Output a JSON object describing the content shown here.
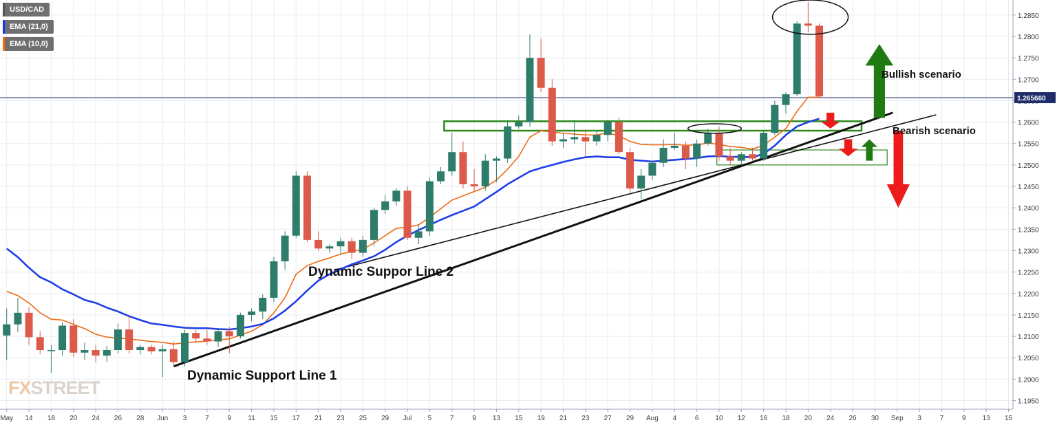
{
  "legend": [
    {
      "label": "USD/CAD",
      "color": "#555555"
    },
    {
      "label": "EMA (21,0)",
      "color": "#1434f0"
    },
    {
      "label": "EMA (10,0)",
      "color": "#ff6a00"
    }
  ],
  "watermark": {
    "prefix": "FX",
    "suffix": "STREET"
  },
  "colors": {
    "bull": "#2e7d6b",
    "bear": "#dc5a4a",
    "ema21": "#1e3ee8",
    "ema10": "#ee6a14",
    "grid": "#e8ecf2",
    "axis_text": "#3a3a3a",
    "price_line": "#1f2d6b",
    "zone": "#2f8a1c",
    "arrow_green": "#1f7a12",
    "arrow_red": "#ee1b1b"
  },
  "annotations": {
    "support1": "Dynamic Support Line 1",
    "support2": "Dynamic Suppor Line 2",
    "bullish": "Bullish scenario",
    "bearish": "Bearish scenario"
  },
  "chart_data": {
    "type": "candlestick",
    "title": "USD/CAD",
    "ylim": [
      1.193,
      1.2885
    ],
    "y_ticks": [
      1.195,
      1.2,
      1.205,
      1.21,
      1.215,
      1.22,
      1.225,
      1.23,
      1.235,
      1.24,
      1.245,
      1.25,
      1.255,
      1.26,
      1.265,
      1.27,
      1.275,
      1.28,
      1.285
    ],
    "y_tick_labels": [
      "1.1950",
      "1.2000",
      "1.2050",
      "1.2100",
      "1.2150",
      "1.2200",
      "1.2250",
      "1.2300",
      "1.2350",
      "1.2400",
      "1.2450",
      "1.2500",
      "1.2550",
      "1.2600",
      "1.2650",
      "1.2700",
      "1.2750",
      "1.2800",
      "1.2850"
    ],
    "x_index_range": [
      -0.6,
      90.4
    ],
    "x_ticks": [
      {
        "i": 0,
        "label": "May"
      },
      {
        "i": 2,
        "label": "14"
      },
      {
        "i": 4,
        "label": "18"
      },
      {
        "i": 6,
        "label": "20"
      },
      {
        "i": 8,
        "label": "24"
      },
      {
        "i": 10,
        "label": "26"
      },
      {
        "i": 12,
        "label": "28"
      },
      {
        "i": 14,
        "label": "Jun"
      },
      {
        "i": 16,
        "label": "3"
      },
      {
        "i": 18,
        "label": "7"
      },
      {
        "i": 20,
        "label": "9"
      },
      {
        "i": 22,
        "label": "11"
      },
      {
        "i": 24,
        "label": "15"
      },
      {
        "i": 26,
        "label": "17"
      },
      {
        "i": 28,
        "label": "21"
      },
      {
        "i": 30,
        "label": "23"
      },
      {
        "i": 32,
        "label": "25"
      },
      {
        "i": 34,
        "label": "29"
      },
      {
        "i": 36,
        "label": "Jul"
      },
      {
        "i": 38,
        "label": "5"
      },
      {
        "i": 40,
        "label": "7"
      },
      {
        "i": 42,
        "label": "9"
      },
      {
        "i": 44,
        "label": "13"
      },
      {
        "i": 46,
        "label": "15"
      },
      {
        "i": 48,
        "label": "19"
      },
      {
        "i": 50,
        "label": "21"
      },
      {
        "i": 52,
        "label": "23"
      },
      {
        "i": 54,
        "label": "27"
      },
      {
        "i": 56,
        "label": "29"
      },
      {
        "i": 58,
        "label": "Aug"
      },
      {
        "i": 60,
        "label": "4"
      },
      {
        "i": 62,
        "label": "6"
      },
      {
        "i": 64,
        "label": "10"
      },
      {
        "i": 66,
        "label": "12"
      },
      {
        "i": 68,
        "label": "16"
      },
      {
        "i": 70,
        "label": "18"
      },
      {
        "i": 72,
        "label": "20"
      },
      {
        "i": 74,
        "label": "24"
      },
      {
        "i": 76,
        "label": "26"
      },
      {
        "i": 78,
        "label": "30"
      },
      {
        "i": 80,
        "label": "Sep"
      },
      {
        "i": 82,
        "label": "3"
      },
      {
        "i": 84,
        "label": "7"
      },
      {
        "i": 86,
        "label": "9"
      },
      {
        "i": 88,
        "label": "13"
      },
      {
        "i": 90,
        "label": "15"
      }
    ],
    "current_price": {
      "value": 1.2657,
      "label": "1.265660"
    },
    "candles": [
      [
        1.2102,
        1.2165,
        1.2045,
        1.2128
      ],
      [
        1.2128,
        1.219,
        1.211,
        1.2155
      ],
      [
        1.2155,
        1.2168,
        1.208,
        1.2098
      ],
      [
        1.2098,
        1.2112,
        1.2058,
        1.2068
      ],
      [
        1.2068,
        1.208,
        1.2015,
        1.2068
      ],
      [
        1.2068,
        1.2134,
        1.2055,
        1.2125
      ],
      [
        1.2125,
        1.214,
        1.2052,
        1.2062
      ],
      [
        1.2062,
        1.2085,
        1.2045,
        1.2068
      ],
      [
        1.2068,
        1.208,
        1.204,
        1.2055
      ],
      [
        1.2055,
        1.2078,
        1.204,
        1.2068
      ],
      [
        1.2068,
        1.213,
        1.206,
        1.2116
      ],
      [
        1.2116,
        1.2145,
        1.206,
        1.2068
      ],
      [
        1.2068,
        1.208,
        1.2058,
        1.2075
      ],
      [
        1.2075,
        1.208,
        1.2058,
        1.2065
      ],
      [
        1.2065,
        1.208,
        1.2005,
        1.207
      ],
      [
        1.207,
        1.2088,
        1.203,
        1.204
      ],
      [
        1.204,
        1.2115,
        1.203,
        1.2108
      ],
      [
        1.2108,
        1.2115,
        1.2085,
        1.2095
      ],
      [
        1.2095,
        1.2115,
        1.208,
        1.2088
      ],
      [
        1.2088,
        1.212,
        1.2075,
        1.2112
      ],
      [
        1.2112,
        1.2122,
        1.206,
        1.21
      ],
      [
        1.21,
        1.2155,
        1.2095,
        1.215
      ],
      [
        1.215,
        1.2165,
        1.2135,
        1.2158
      ],
      [
        1.2158,
        1.2198,
        1.214,
        1.219
      ],
      [
        1.219,
        1.2285,
        1.218,
        1.2275
      ],
      [
        1.2275,
        1.2345,
        1.2255,
        1.2335
      ],
      [
        1.2335,
        1.2485,
        1.233,
        1.2475
      ],
      [
        1.2475,
        1.2485,
        1.232,
        1.2325
      ],
      [
        1.2325,
        1.2345,
        1.23,
        1.2305
      ],
      [
        1.2305,
        1.2315,
        1.2295,
        1.231
      ],
      [
        1.231,
        1.233,
        1.229,
        1.2322
      ],
      [
        1.2322,
        1.233,
        1.228,
        1.2295
      ],
      [
        1.2295,
        1.2335,
        1.2285,
        1.2325
      ],
      [
        1.2325,
        1.24,
        1.231,
        1.2395
      ],
      [
        1.2395,
        1.243,
        1.2385,
        1.2415
      ],
      [
        1.2415,
        1.2445,
        1.2405,
        1.244
      ],
      [
        1.244,
        1.245,
        1.2325,
        1.233
      ],
      [
        1.233,
        1.236,
        1.2315,
        1.2345
      ],
      [
        1.2345,
        1.247,
        1.2335,
        1.2462
      ],
      [
        1.2462,
        1.2495,
        1.2455,
        1.2485
      ],
      [
        1.2485,
        1.2575,
        1.2475,
        1.253
      ],
      [
        1.253,
        1.2555,
        1.2445,
        1.2455
      ],
      [
        1.2455,
        1.249,
        1.244,
        1.245
      ],
      [
        1.245,
        1.2525,
        1.244,
        1.251
      ],
      [
        1.251,
        1.252,
        1.246,
        1.2515
      ],
      [
        1.2515,
        1.2605,
        1.2505,
        1.259
      ],
      [
        1.259,
        1.2615,
        1.2585,
        1.26
      ],
      [
        1.26,
        1.2805,
        1.259,
        1.275
      ],
      [
        1.275,
        1.2795,
        1.267,
        1.268
      ],
      [
        1.268,
        1.27,
        1.2545,
        1.2555
      ],
      [
        1.2555,
        1.2575,
        1.254,
        1.256
      ],
      [
        1.256,
        1.2605,
        1.255,
        1.2565
      ],
      [
        1.2565,
        1.258,
        1.252,
        1.2555
      ],
      [
        1.2555,
        1.258,
        1.2545,
        1.257
      ],
      [
        1.257,
        1.2605,
        1.2555,
        1.26
      ],
      [
        1.26,
        1.261,
        1.2525,
        1.253
      ],
      [
        1.253,
        1.254,
        1.2435,
        1.2445
      ],
      [
        1.2445,
        1.249,
        1.242,
        1.2475
      ],
      [
        1.2475,
        1.251,
        1.2465,
        1.2505
      ],
      [
        1.2505,
        1.256,
        1.2495,
        1.254
      ],
      [
        1.254,
        1.2575,
        1.2535,
        1.2545
      ],
      [
        1.2545,
        1.2555,
        1.249,
        1.2515
      ],
      [
        1.2515,
        1.256,
        1.2495,
        1.255
      ],
      [
        1.255,
        1.2585,
        1.2545,
        1.2575
      ],
      [
        1.2575,
        1.259,
        1.251,
        1.252
      ],
      [
        1.252,
        1.254,
        1.25,
        1.251
      ],
      [
        1.251,
        1.253,
        1.25,
        1.2525
      ],
      [
        1.2525,
        1.254,
        1.251,
        1.2515
      ],
      [
        1.2515,
        1.258,
        1.251,
        1.2575
      ],
      [
        1.2575,
        1.265,
        1.257,
        1.264
      ],
      [
        1.264,
        1.267,
        1.262,
        1.2665
      ],
      [
        1.2665,
        1.2835,
        1.266,
        1.283
      ],
      [
        1.283,
        1.288,
        1.281,
        1.2825
      ],
      [
        1.2825,
        1.283,
        1.2655,
        1.266
      ]
    ],
    "series": [
      {
        "name": "EMA (21,0)",
        "values": [
          1.2305,
          1.2285,
          1.226,
          1.2238,
          1.2226,
          1.221,
          1.2198,
          1.2185,
          1.2178,
          1.2167,
          1.2158,
          1.2147,
          1.2138,
          1.213,
          1.2127,
          1.2123,
          1.212,
          1.2119,
          1.2119,
          1.2117,
          1.2116,
          1.2119,
          1.2123,
          1.2129,
          1.2142,
          1.216,
          1.2182,
          1.2207,
          1.223,
          1.2245,
          1.2257,
          1.2268,
          1.2277,
          1.2287,
          1.2302,
          1.232,
          1.2335,
          1.2348,
          1.236,
          1.2372,
          1.2383,
          1.2393,
          1.2403,
          1.242,
          1.2437,
          1.2455,
          1.247,
          1.2485,
          1.2493,
          1.25,
          1.2507,
          1.2513,
          1.2518,
          1.252,
          1.2518,
          1.2518,
          1.2512,
          1.251,
          1.2508,
          1.251,
          1.2512,
          1.2514,
          1.2516,
          1.252,
          1.2521,
          1.2519,
          1.2519,
          1.2518,
          1.2526,
          1.2545,
          1.257,
          1.259,
          1.26,
          1.2608
        ]
      },
      {
        "name": "EMA (10,0)",
        "values": [
          1.2205,
          1.2195,
          1.2178,
          1.2155,
          1.214,
          1.2138,
          1.2128,
          1.2118,
          1.2105,
          1.2098,
          1.2096,
          1.2094,
          1.2091,
          1.2088,
          1.2086,
          1.2082,
          1.2085,
          1.2087,
          1.2089,
          1.2092,
          1.2094,
          1.2103,
          1.2112,
          1.2127,
          1.2155,
          1.219,
          1.2245,
          1.2265,
          1.2275,
          1.2283,
          1.2292,
          1.2298,
          1.2303,
          1.2318,
          1.2335,
          1.2352,
          1.2355,
          1.236,
          1.2378,
          1.2398,
          1.2418,
          1.2428,
          1.2438,
          1.2448,
          1.2465,
          1.249,
          1.252,
          1.2565,
          1.258,
          1.2577,
          1.2574,
          1.2572,
          1.257,
          1.257,
          1.2575,
          1.2568,
          1.2555,
          1.2548,
          1.2547,
          1.2547,
          1.2548,
          1.2546,
          1.2547,
          1.2551,
          1.2548,
          1.2543,
          1.2541,
          1.2537,
          1.2546,
          1.2565,
          1.2585,
          1.2625,
          1.2658,
          1.2658
        ]
      }
    ],
    "trendlines": [
      {
        "from": [
          15.0,
          1.203
        ],
        "to": [
          79.6,
          1.2622
        ]
      },
      {
        "from": [
          29.5,
          1.2255
        ],
        "to": [
          83.5,
          1.2617
        ]
      }
    ],
    "zones": [
      {
        "from_i": 39.3,
        "to_i": 76.8,
        "low": 1.258,
        "high": 1.2602
      },
      {
        "from_i": 63.8,
        "to_i": 79.1,
        "low": 1.25,
        "high": 1.2535
      }
    ],
    "ellipses": [
      {
        "center_i": 72.2,
        "center_y": 1.2845,
        "rx_i": 3.4,
        "ry": 0.004
      },
      {
        "center_i": 63.6,
        "center_y": 1.2585,
        "rx_i": 2.4,
        "ry": 0.0011
      }
    ],
    "arrows": [
      {
        "kind": "up",
        "color": "green",
        "center_i": 78.4,
        "base_y": 1.261,
        "tip_y": 1.2782,
        "shaft_w_i": 1.0,
        "head_w_i": 2.5,
        "head_h": 0.005
      },
      {
        "kind": "down",
        "color": "red",
        "center_i": 80.1,
        "base_y": 1.258,
        "tip_y": 1.24,
        "shaft_w_i": 0.85,
        "head_w_i": 2.05,
        "head_h": 0.0055
      },
      {
        "kind": "down",
        "color": "red",
        "center_i": 74.0,
        "base_y": 1.2622,
        "tip_y": 1.2585,
        "shaft_w_i": 0.7,
        "head_w_i": 1.7,
        "head_h": 0.0016
      },
      {
        "kind": "down",
        "color": "red",
        "center_i": 75.6,
        "base_y": 1.256,
        "tip_y": 1.252,
        "shaft_w_i": 0.7,
        "head_w_i": 1.7,
        "head_h": 0.0018
      },
      {
        "kind": "up",
        "color": "green",
        "center_i": 77.5,
        "base_y": 1.251,
        "tip_y": 1.256,
        "shaft_w_i": 0.6,
        "head_w_i": 1.45,
        "head_h": 0.0018
      }
    ]
  }
}
